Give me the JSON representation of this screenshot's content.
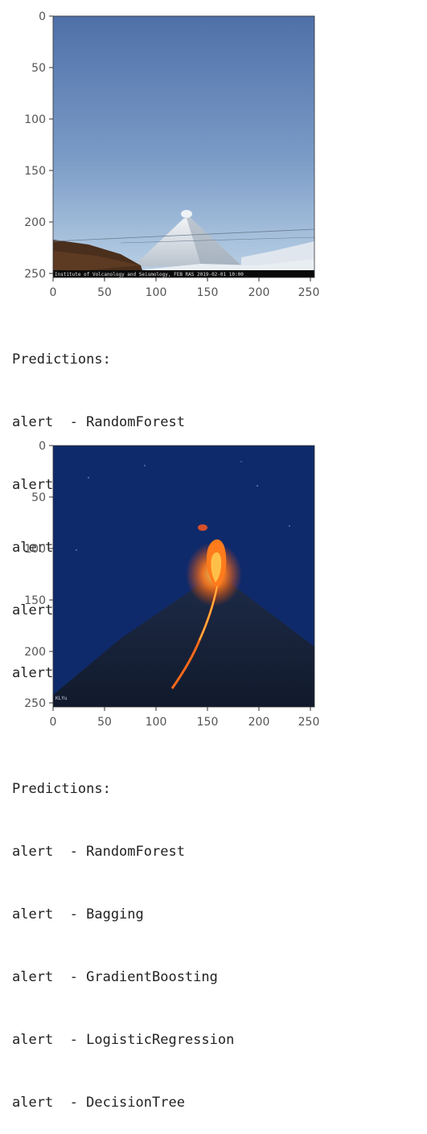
{
  "outputs": [
    {
      "image": {
        "description": "snow-capped volcano under blue sky with small plume",
        "caption_strip": "Institute of Volcanology and Seismology, FEB RAS  2019-02-01 10:00",
        "x_ticks": [
          "0",
          "50",
          "100",
          "150",
          "200",
          "250"
        ],
        "y_ticks": [
          "0",
          "50",
          "100",
          "150",
          "200",
          "250"
        ],
        "colors": {
          "sky_top": "#4f70a8",
          "sky_bottom": "#b5cde3",
          "snow": "#e9eef3",
          "ground": "#4a2f1c"
        }
      },
      "predictions": {
        "header": "Predictions:",
        "items": [
          "alert  - RandomForest",
          "alert  - Bagging",
          "alert  - GradientBoosting",
          "alert  - LogisticRegression",
          "alert  - DecisionTree"
        ]
      }
    },
    {
      "image": {
        "description": "erupting volcano at night with lava flow",
        "caption_strip": "KLYu",
        "x_ticks": [
          "0",
          "50",
          "100",
          "150",
          "200",
          "250"
        ],
        "y_ticks": [
          "0",
          "50",
          "100",
          "150",
          "200",
          "250"
        ],
        "colors": {
          "sky": "#0f2a6b",
          "mountain": "#162036",
          "lava": "#ff6a1a"
        }
      },
      "predictions": {
        "header": "Predictions:",
        "items": [
          "alert  - RandomForest",
          "alert  - Bagging",
          "alert  - GradientBoosting",
          "alert  - LogisticRegression",
          "alert  - DecisionTree"
        ]
      }
    }
  ]
}
